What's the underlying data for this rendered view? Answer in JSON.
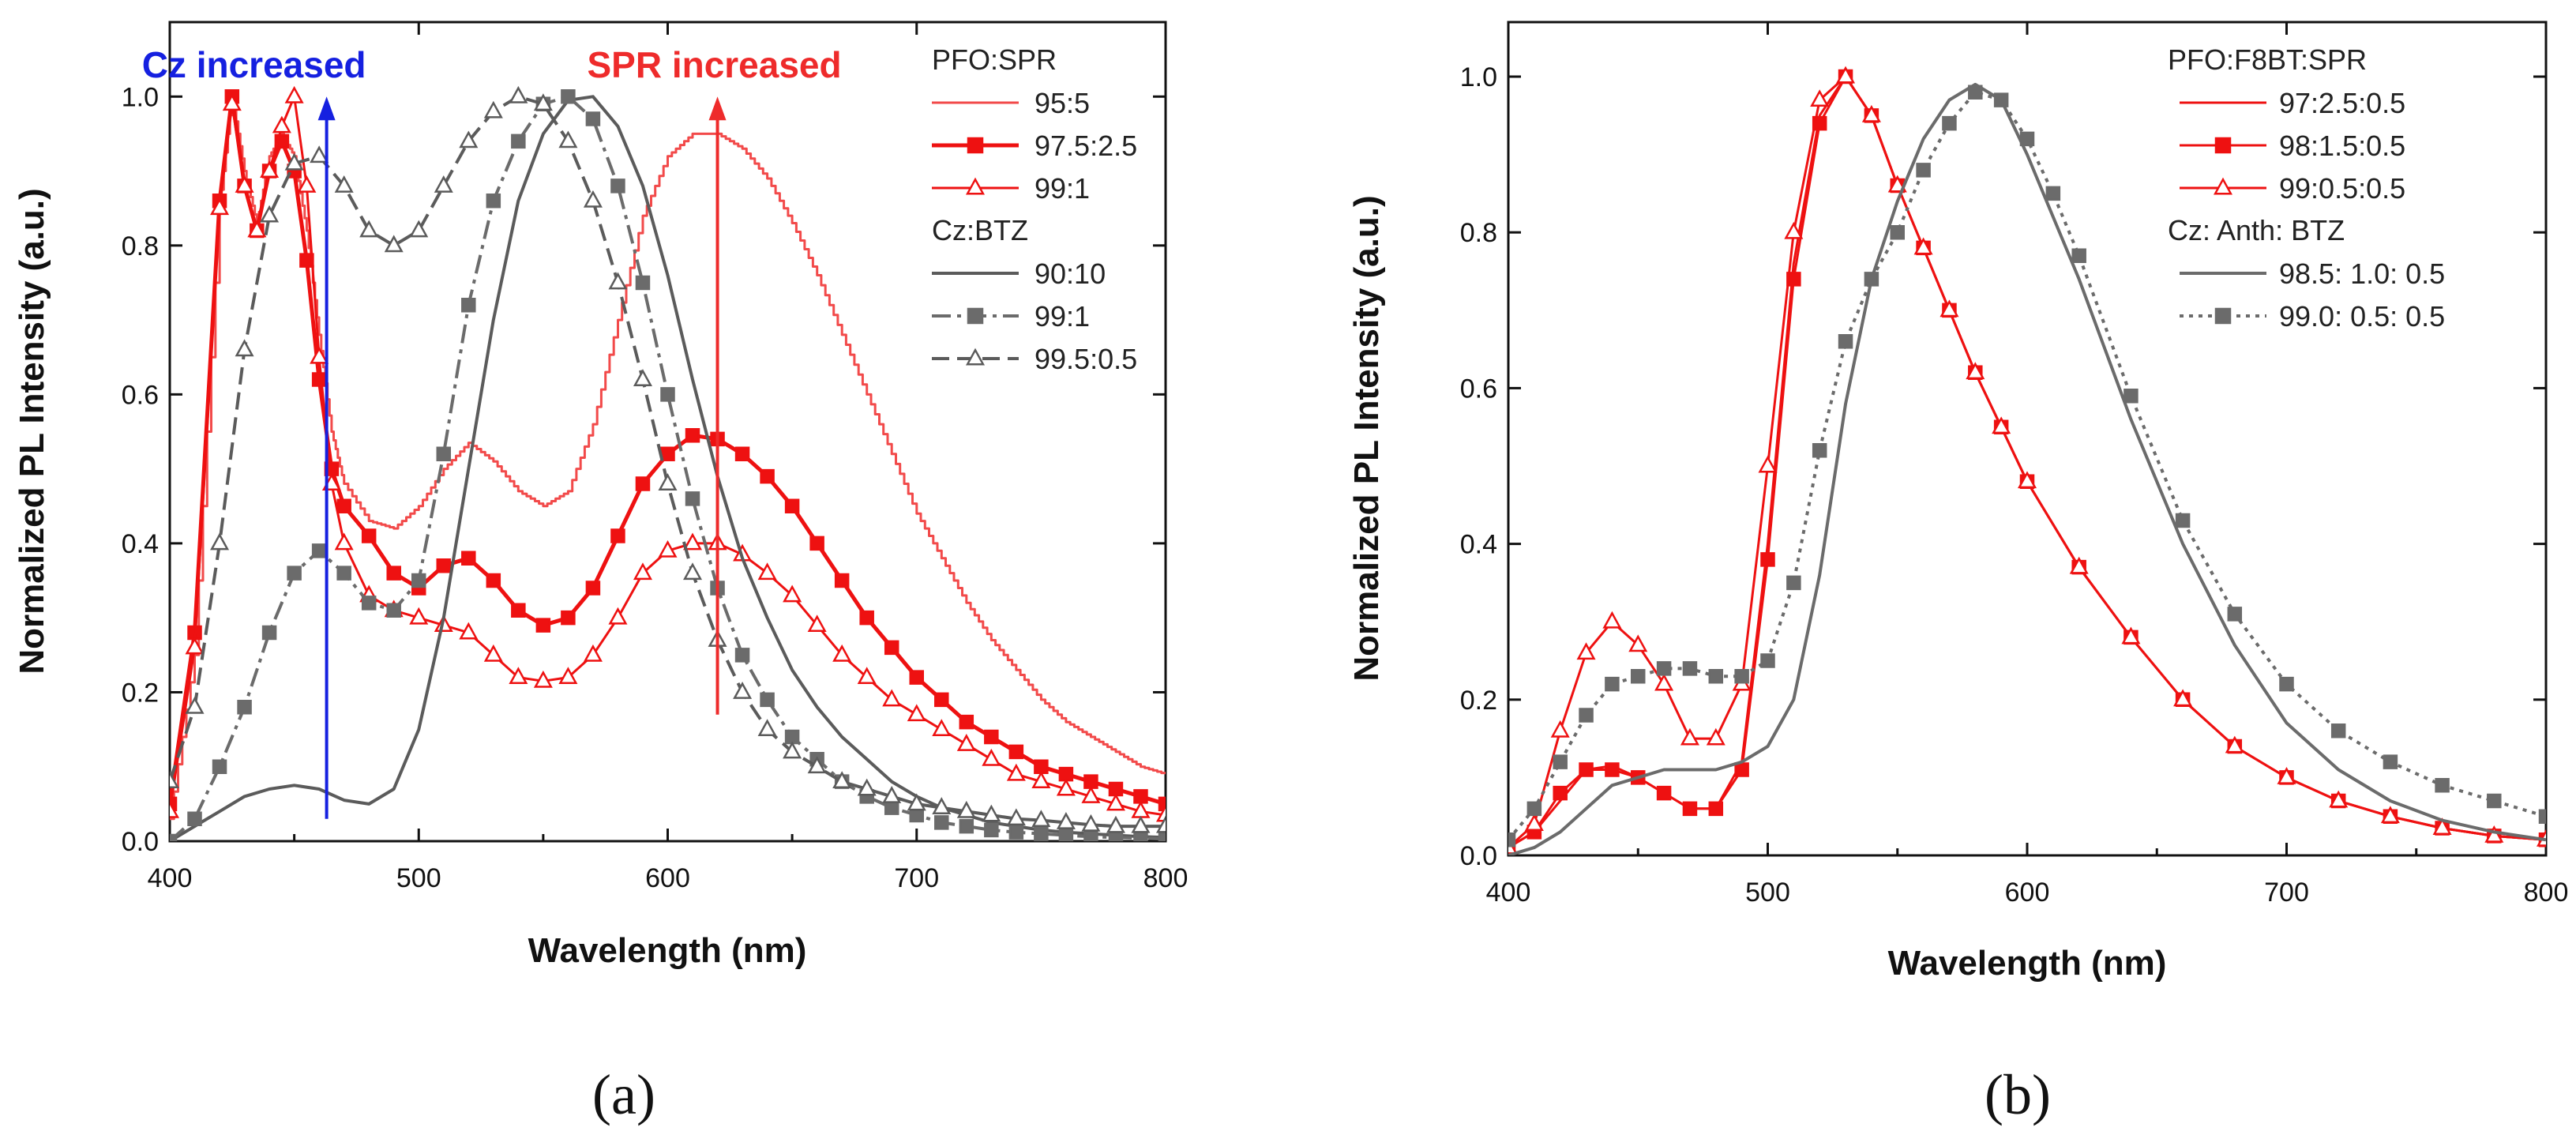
{
  "chart_data": [
    {
      "type": "line",
      "panel_label": "(a)",
      "xlabel": "Wavelength (nm)",
      "ylabel": "Normalized PL Intensity (a.u.)",
      "xlim": [
        400,
        800
      ],
      "ylim": [
        0.0,
        1.1
      ],
      "xticks": [
        400,
        500,
        600,
        700,
        800
      ],
      "yticks": [
        0.0,
        0.2,
        0.4,
        0.6,
        0.8,
        1.0
      ],
      "annotations": [
        {
          "text": "Cz increased",
          "color": "#1520e0",
          "arrow_x": 463,
          "arrow_from": 0.03,
          "arrow_to": 1.0
        },
        {
          "text": "SPR increased",
          "color": "#ee2b2b",
          "arrow_x": 620,
          "arrow_from": 0.17,
          "arrow_to": 1.0
        }
      ],
      "legend": {
        "placement": "top-right",
        "groups": [
          {
            "title": "PFO:SPR",
            "entries": [
              0,
              1,
              2
            ]
          },
          {
            "title": "Cz:BTZ",
            "entries": [
              3,
              4,
              5
            ]
          }
        ]
      },
      "series": [
        {
          "name": "95:5",
          "color": "#f24a4a",
          "style": "step",
          "marker": "none",
          "width": 3,
          "x": [
            400,
            410,
            420,
            425,
            430,
            435,
            440,
            445,
            450,
            455,
            460,
            465,
            470,
            480,
            490,
            500,
            510,
            520,
            530,
            540,
            550,
            560,
            570,
            580,
            590,
            600,
            610,
            620,
            630,
            640,
            650,
            660,
            670,
            680,
            690,
            700,
            710,
            720,
            730,
            740,
            750,
            760,
            770,
            780,
            790,
            800
          ],
          "y": [
            0.03,
            0.25,
            0.85,
            1.0,
            0.9,
            0.83,
            0.92,
            0.95,
            0.92,
            0.82,
            0.68,
            0.55,
            0.48,
            0.43,
            0.42,
            0.45,
            0.5,
            0.535,
            0.51,
            0.47,
            0.45,
            0.47,
            0.56,
            0.7,
            0.84,
            0.92,
            0.95,
            0.95,
            0.93,
            0.89,
            0.83,
            0.76,
            0.68,
            0.6,
            0.52,
            0.44,
            0.38,
            0.32,
            0.27,
            0.23,
            0.19,
            0.16,
            0.14,
            0.12,
            0.1,
            0.09
          ]
        },
        {
          "name": "97.5:2.5",
          "color": "#ee1111",
          "style": "line",
          "marker": "square",
          "width": 5,
          "x": [
            400,
            410,
            420,
            425,
            430,
            435,
            440,
            445,
            450,
            455,
            460,
            465,
            470,
            480,
            490,
            500,
            510,
            520,
            530,
            540,
            550,
            560,
            570,
            580,
            590,
            600,
            610,
            620,
            630,
            640,
            650,
            660,
            670,
            680,
            690,
            700,
            710,
            720,
            730,
            740,
            750,
            760,
            770,
            780,
            790,
            800
          ],
          "y": [
            0.05,
            0.28,
            0.86,
            1.0,
            0.88,
            0.82,
            0.9,
            0.94,
            0.9,
            0.78,
            0.62,
            0.5,
            0.45,
            0.41,
            0.36,
            0.34,
            0.37,
            0.38,
            0.35,
            0.31,
            0.29,
            0.3,
            0.34,
            0.41,
            0.48,
            0.52,
            0.545,
            0.54,
            0.52,
            0.49,
            0.45,
            0.4,
            0.35,
            0.3,
            0.26,
            0.22,
            0.19,
            0.16,
            0.14,
            0.12,
            0.1,
            0.09,
            0.08,
            0.07,
            0.06,
            0.05
          ]
        },
        {
          "name": "99:1",
          "color": "#ee1111",
          "style": "line",
          "marker": "triangle",
          "width": 3,
          "x": [
            400,
            410,
            420,
            425,
            430,
            435,
            440,
            445,
            450,
            455,
            460,
            465,
            470,
            480,
            490,
            500,
            510,
            520,
            530,
            540,
            550,
            560,
            570,
            580,
            590,
            600,
            610,
            620,
            630,
            640,
            650,
            660,
            670,
            680,
            690,
            700,
            710,
            720,
            730,
            740,
            750,
            760,
            770,
            780,
            790,
            800
          ],
          "y": [
            0.04,
            0.26,
            0.85,
            0.99,
            0.88,
            0.82,
            0.9,
            0.96,
            1.0,
            0.88,
            0.65,
            0.48,
            0.4,
            0.33,
            0.31,
            0.3,
            0.29,
            0.28,
            0.25,
            0.22,
            0.215,
            0.22,
            0.25,
            0.3,
            0.36,
            0.39,
            0.4,
            0.4,
            0.385,
            0.36,
            0.33,
            0.29,
            0.25,
            0.22,
            0.19,
            0.17,
            0.15,
            0.13,
            0.11,
            0.09,
            0.08,
            0.07,
            0.06,
            0.05,
            0.04,
            0.035
          ]
        },
        {
          "name": "90:10",
          "color": "#5b5b5b",
          "style": "line",
          "marker": "none",
          "width": 4,
          "x": [
            400,
            410,
            420,
            430,
            440,
            450,
            460,
            470,
            480,
            490,
            500,
            510,
            520,
            530,
            540,
            550,
            560,
            570,
            580,
            590,
            600,
            610,
            620,
            630,
            640,
            650,
            660,
            670,
            680,
            690,
            700,
            710,
            720,
            730,
            740,
            750,
            760,
            770,
            780,
            790,
            800
          ],
          "y": [
            0.0,
            0.02,
            0.04,
            0.06,
            0.07,
            0.075,
            0.07,
            0.055,
            0.05,
            0.07,
            0.15,
            0.3,
            0.5,
            0.7,
            0.86,
            0.95,
            0.995,
            1.0,
            0.96,
            0.88,
            0.76,
            0.62,
            0.49,
            0.38,
            0.3,
            0.23,
            0.18,
            0.14,
            0.11,
            0.08,
            0.06,
            0.045,
            0.035,
            0.025,
            0.02,
            0.015,
            0.012,
            0.01,
            0.008,
            0.006,
            0.005
          ]
        },
        {
          "name": "99:1",
          "color": "#6b6b6b",
          "style": "dashdot",
          "marker": "square",
          "width": 4,
          "x": [
            400,
            410,
            420,
            430,
            440,
            450,
            460,
            470,
            480,
            490,
            500,
            510,
            520,
            530,
            540,
            550,
            560,
            570,
            580,
            590,
            600,
            610,
            620,
            630,
            640,
            650,
            660,
            670,
            680,
            690,
            700,
            710,
            720,
            730,
            740,
            750,
            760,
            770,
            780,
            790,
            800
          ],
          "y": [
            0.0,
            0.03,
            0.1,
            0.18,
            0.28,
            0.36,
            0.39,
            0.36,
            0.32,
            0.31,
            0.35,
            0.52,
            0.72,
            0.86,
            0.94,
            0.99,
            1.0,
            0.97,
            0.88,
            0.75,
            0.6,
            0.46,
            0.34,
            0.25,
            0.19,
            0.14,
            0.11,
            0.08,
            0.06,
            0.045,
            0.035,
            0.025,
            0.02,
            0.015,
            0.012,
            0.01,
            0.008,
            0.006,
            0.005,
            0.004,
            0.003
          ]
        },
        {
          "name": "99.5:0.5",
          "color": "#5b5b5b",
          "style": "dashed",
          "marker": "triangle",
          "width": 4,
          "x": [
            400,
            410,
            420,
            430,
            440,
            450,
            460,
            470,
            480,
            490,
            500,
            510,
            520,
            530,
            540,
            550,
            560,
            570,
            580,
            590,
            600,
            610,
            620,
            630,
            640,
            650,
            660,
            670,
            680,
            690,
            700,
            710,
            720,
            730,
            740,
            750,
            760,
            770,
            780,
            790,
            800
          ],
          "y": [
            0.08,
            0.18,
            0.4,
            0.66,
            0.84,
            0.91,
            0.92,
            0.88,
            0.82,
            0.8,
            0.82,
            0.88,
            0.94,
            0.98,
            1.0,
            0.99,
            0.94,
            0.86,
            0.75,
            0.62,
            0.48,
            0.36,
            0.27,
            0.2,
            0.15,
            0.12,
            0.1,
            0.08,
            0.07,
            0.06,
            0.05,
            0.045,
            0.04,
            0.035,
            0.03,
            0.028,
            0.025,
            0.022,
            0.02,
            0.02,
            0.02
          ]
        }
      ]
    },
    {
      "type": "line",
      "panel_label": "(b)",
      "xlabel": "Wavelength (nm)",
      "ylabel": "Normalized PL Intensity (a.u.)",
      "xlim": [
        400,
        800
      ],
      "ylim": [
        0.0,
        1.07
      ],
      "xticks": [
        400,
        500,
        600,
        700,
        800
      ],
      "yticks": [
        0.0,
        0.2,
        0.4,
        0.6,
        0.8,
        1.0
      ],
      "legend": {
        "placement": "top-right",
        "groups": [
          {
            "title": "PFO:F8BT:SPR",
            "entries": [
              0,
              1,
              2
            ]
          },
          {
            "title": "Cz: Anth: BTZ",
            "entries": [
              3,
              4
            ]
          }
        ]
      },
      "series": [
        {
          "name": "97:2.5:0.5",
          "color": "#ee1111",
          "style": "line",
          "marker": "none",
          "width": 3,
          "x": [
            400,
            410,
            420,
            430,
            440,
            450,
            460,
            470,
            480,
            490,
            500,
            510,
            520,
            530,
            540,
            550,
            560,
            570,
            580,
            590,
            600,
            620,
            640,
            660,
            680,
            700,
            720,
            740,
            760,
            780,
            800
          ],
          "y": [
            0.01,
            0.03,
            0.07,
            0.11,
            0.115,
            0.1,
            0.08,
            0.06,
            0.06,
            0.12,
            0.4,
            0.76,
            0.95,
            1.0,
            0.95,
            0.86,
            0.78,
            0.7,
            0.62,
            0.55,
            0.48,
            0.37,
            0.28,
            0.2,
            0.14,
            0.1,
            0.07,
            0.05,
            0.035,
            0.025,
            0.02
          ]
        },
        {
          "name": "98:1.5:0.5",
          "color": "#ee1111",
          "style": "line",
          "marker": "square",
          "width": 3,
          "x": [
            400,
            410,
            420,
            430,
            440,
            450,
            460,
            470,
            480,
            490,
            500,
            510,
            520,
            530,
            540,
            550,
            560,
            570,
            580,
            590,
            600,
            620,
            640,
            660,
            680,
            700,
            720,
            740,
            760,
            780,
            800
          ],
          "y": [
            0.01,
            0.03,
            0.08,
            0.11,
            0.11,
            0.1,
            0.08,
            0.06,
            0.06,
            0.11,
            0.38,
            0.74,
            0.94,
            1.0,
            0.95,
            0.86,
            0.78,
            0.7,
            0.62,
            0.55,
            0.48,
            0.37,
            0.28,
            0.2,
            0.14,
            0.1,
            0.07,
            0.05,
            0.035,
            0.025,
            0.02
          ]
        },
        {
          "name": "99:0.5:0.5",
          "color": "#ee1111",
          "style": "line",
          "marker": "triangle",
          "width": 3,
          "x": [
            400,
            410,
            420,
            430,
            440,
            450,
            460,
            470,
            480,
            490,
            500,
            510,
            520,
            530,
            540,
            550,
            560,
            570,
            580,
            590,
            600,
            620,
            640,
            660,
            680,
            700,
            720,
            740,
            760,
            780,
            800
          ],
          "y": [
            0.01,
            0.04,
            0.16,
            0.26,
            0.3,
            0.27,
            0.22,
            0.15,
            0.15,
            0.22,
            0.5,
            0.8,
            0.97,
            1.0,
            0.95,
            0.86,
            0.78,
            0.7,
            0.62,
            0.55,
            0.48,
            0.37,
            0.28,
            0.2,
            0.14,
            0.1,
            0.07,
            0.05,
            0.035,
            0.025,
            0.02
          ]
        },
        {
          "name": "98.5: 1.0: 0.5",
          "color": "#6b6b6b",
          "style": "line",
          "marker": "none",
          "width": 4,
          "x": [
            400,
            410,
            420,
            430,
            440,
            450,
            460,
            470,
            480,
            490,
            500,
            510,
            520,
            530,
            540,
            550,
            560,
            570,
            580,
            590,
            600,
            610,
            620,
            640,
            660,
            680,
            700,
            720,
            740,
            760,
            780,
            800
          ],
          "y": [
            0.0,
            0.01,
            0.03,
            0.06,
            0.09,
            0.1,
            0.11,
            0.11,
            0.11,
            0.12,
            0.14,
            0.2,
            0.36,
            0.58,
            0.74,
            0.84,
            0.92,
            0.97,
            0.99,
            0.97,
            0.9,
            0.82,
            0.74,
            0.56,
            0.4,
            0.27,
            0.17,
            0.11,
            0.07,
            0.045,
            0.03,
            0.02
          ]
        },
        {
          "name": "99.0: 0.5: 0.5",
          "color": "#6b6b6b",
          "style": "dotted",
          "marker": "square",
          "width": 4,
          "x": [
            400,
            410,
            420,
            430,
            440,
            450,
            460,
            470,
            480,
            490,
            500,
            510,
            520,
            530,
            540,
            550,
            560,
            570,
            580,
            590,
            600,
            610,
            620,
            640,
            660,
            680,
            700,
            720,
            740,
            760,
            780,
            800
          ],
          "y": [
            0.02,
            0.06,
            0.12,
            0.18,
            0.22,
            0.23,
            0.24,
            0.24,
            0.23,
            0.23,
            0.25,
            0.35,
            0.52,
            0.66,
            0.74,
            0.8,
            0.88,
            0.94,
            0.98,
            0.97,
            0.92,
            0.85,
            0.77,
            0.59,
            0.43,
            0.31,
            0.22,
            0.16,
            0.12,
            0.09,
            0.07,
            0.05
          ]
        }
      ]
    }
  ]
}
